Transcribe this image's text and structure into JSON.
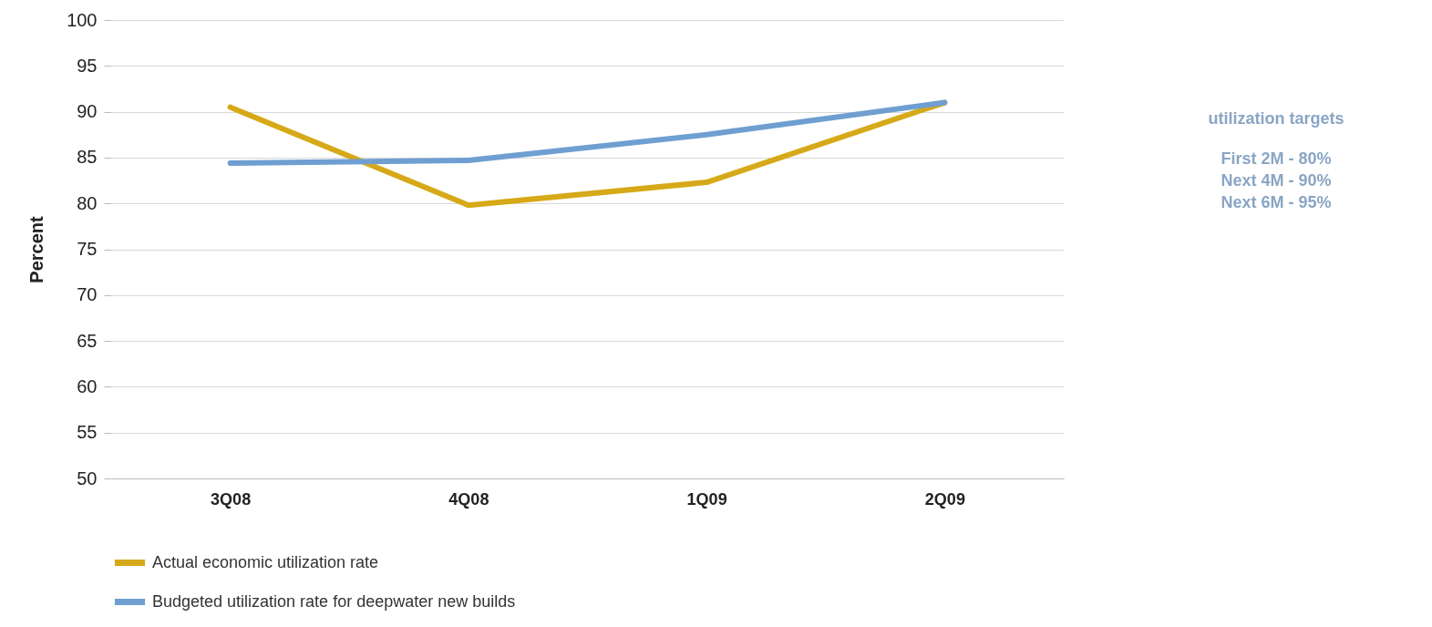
{
  "chart_data": {
    "type": "line",
    "ylabel": "Percent",
    "categories": [
      "3Q08",
      "4Q08",
      "1Q09",
      "2Q09"
    ],
    "series": [
      {
        "name": "Actual economic utilization rate",
        "color": "#d6a918",
        "values": [
          90.5,
          79.8,
          82.3,
          91
        ]
      },
      {
        "name": "Budgeted utilization rate for deepwater new builds",
        "color": "#6f9fd1",
        "values": [
          84.4,
          84.7,
          87.5,
          91
        ]
      }
    ],
    "ylim": [
      50,
      100
    ],
    "yticks": [
      50,
      55,
      60,
      65,
      70,
      75,
      80,
      85,
      90,
      95,
      100
    ],
    "grid": "y",
    "legend": "bottom left",
    "marker": "none",
    "line_style": "solid",
    "annotations": [
      "utilization targets",
      "First 2M - 80%",
      "Next 4M - 90%",
      "Next 6M - 95%"
    ]
  }
}
